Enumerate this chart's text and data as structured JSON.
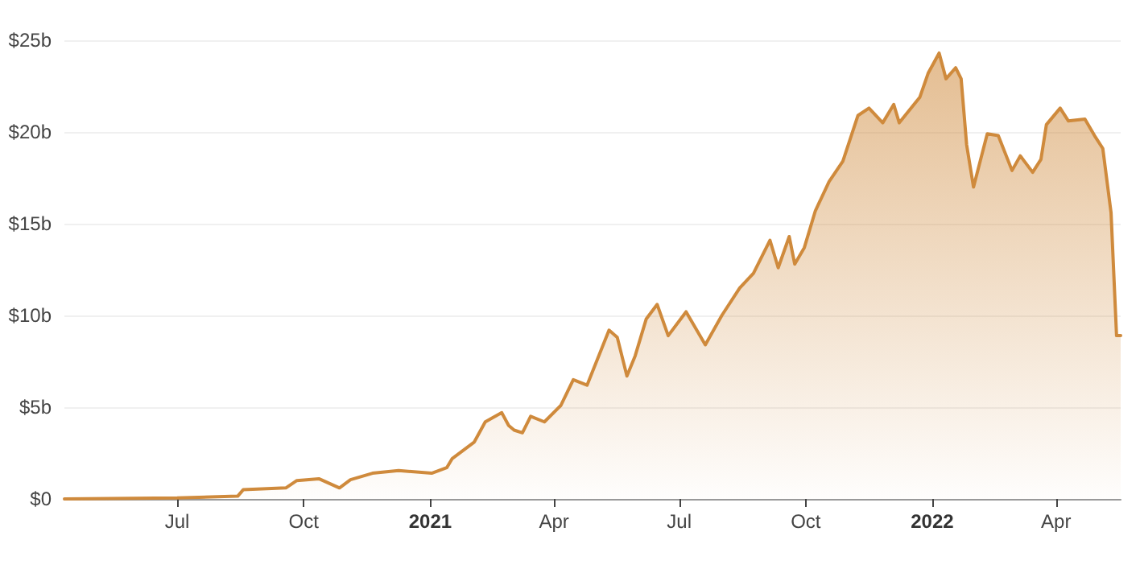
{
  "chart_data": {
    "type": "area",
    "x": [
      "2020-04-10",
      "2020-07-01",
      "2020-08-14",
      "2020-08-18",
      "2020-09-18",
      "2020-09-26",
      "2020-10-12",
      "2020-10-27",
      "2020-11-04",
      "2020-11-20",
      "2020-12-09",
      "2021-01-02",
      "2021-01-13",
      "2021-01-17",
      "2021-02-02",
      "2021-02-10",
      "2021-02-22",
      "2021-02-27",
      "2021-03-03",
      "2021-03-09",
      "2021-03-15",
      "2021-03-25",
      "2021-04-06",
      "2021-04-15",
      "2021-04-25",
      "2021-05-11",
      "2021-05-17",
      "2021-05-24",
      "2021-05-30",
      "2021-06-07",
      "2021-06-15",
      "2021-06-23",
      "2021-07-06",
      "2021-07-20",
      "2021-08-01",
      "2021-08-14",
      "2021-08-24",
      "2021-09-05",
      "2021-09-11",
      "2021-09-19",
      "2021-09-23",
      "2021-09-30",
      "2021-10-08",
      "2021-10-18",
      "2021-10-28",
      "2021-11-08",
      "2021-11-16",
      "2021-11-26",
      "2021-12-04",
      "2021-12-08",
      "2021-12-23",
      "2021-12-29",
      "2022-01-06",
      "2022-01-11",
      "2022-01-18",
      "2022-01-22",
      "2022-01-26",
      "2022-01-31",
      "2022-02-10",
      "2022-02-18",
      "2022-02-28",
      "2022-03-06",
      "2022-03-15",
      "2022-03-21",
      "2022-03-25",
      "2022-04-04",
      "2022-04-10",
      "2022-04-22",
      "2022-04-29",
      "2022-05-05",
      "2022-05-11",
      "2022-05-15",
      "2022-05-18"
    ],
    "series": [
      {
        "color": "#cf8a3c",
        "values": [
          0,
          0.05,
          0.15,
          0.5,
          0.6,
          1.0,
          1.1,
          0.6,
          1.05,
          1.4,
          1.55,
          1.4,
          1.7,
          2.2,
          3.1,
          4.2,
          4.7,
          4.0,
          3.75,
          3.6,
          4.5,
          4.2,
          5.1,
          6.5,
          6.2,
          9.2,
          8.8,
          6.7,
          7.8,
          9.8,
          10.6,
          8.9,
          10.2,
          8.4,
          10.0,
          11.5,
          12.3,
          14.1,
          12.6,
          14.3,
          12.8,
          13.7,
          15.7,
          17.3,
          18.4,
          20.9,
          21.3,
          20.5,
          21.5,
          20.5,
          21.9,
          23.2,
          24.3,
          22.9,
          23.5,
          22.9,
          19.3,
          17.0,
          19.9,
          19.8,
          17.9,
          18.7,
          17.8,
          18.5,
          20.4,
          21.3,
          20.6,
          20.7,
          19.8,
          19.1,
          15.6,
          8.9,
          8.9
        ]
      }
    ],
    "xlim": [
      "2020-04-10",
      "2022-05-18"
    ],
    "xticks": [
      {
        "value": "2020-07-01",
        "label": "Jul"
      },
      {
        "value": "2020-10-01",
        "label": "Oct"
      },
      {
        "value": "2021-01-01",
        "label": "2021"
      },
      {
        "value": "2021-04-01",
        "label": "Apr"
      },
      {
        "value": "2021-07-01",
        "label": "Jul"
      },
      {
        "value": "2021-10-01",
        "label": "Oct"
      },
      {
        "value": "2022-01-01",
        "label": "2022"
      },
      {
        "value": "2022-04-01",
        "label": "Apr"
      }
    ],
    "ylim": [
      0,
      25
    ],
    "yticks": [
      {
        "value": 0,
        "label": "$0"
      },
      {
        "value": 5,
        "label": "$5b"
      },
      {
        "value": 10,
        "label": "$10b"
      },
      {
        "value": 15,
        "label": "$15b"
      },
      {
        "value": 20,
        "label": "$20b"
      },
      {
        "value": 25,
        "label": "$25b"
      }
    ],
    "grid": "y",
    "marker": "none"
  }
}
